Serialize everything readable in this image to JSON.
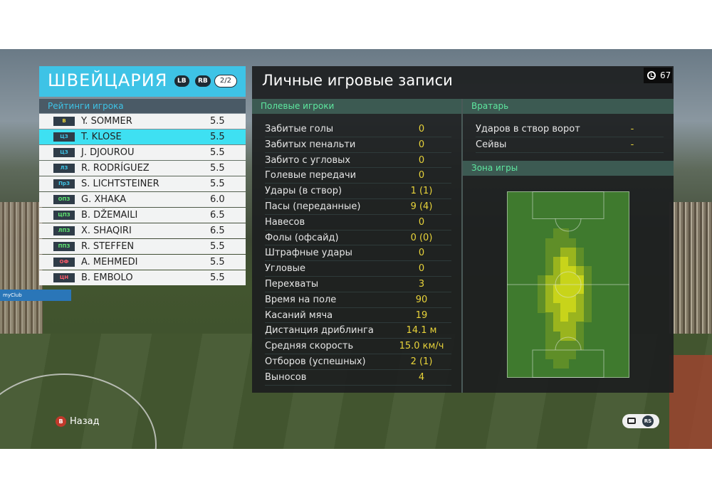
{
  "team": {
    "name": "ШВЕЙЦАРИЯ",
    "btn_lb": "LB",
    "btn_rb": "RB",
    "page": "2/2"
  },
  "ratings_title": "Рейтинги игрока",
  "players": [
    {
      "pos": "В",
      "pos_color": "#e8d33a",
      "name": "Y. SOMMER",
      "rating": "5.5"
    },
    {
      "pos": "ЦЗ",
      "pos_color": "#3ec3e6",
      "name": "T. KLOSE",
      "rating": "5.5",
      "selected": true
    },
    {
      "pos": "ЦЗ",
      "pos_color": "#3ec3e6",
      "name": "J. DJOUROU",
      "rating": "5.5"
    },
    {
      "pos": "ЛЗ",
      "pos_color": "#3ec3e6",
      "name": "R. RODRÍGUEZ",
      "rating": "5.5"
    },
    {
      "pos": "ПрЗ",
      "pos_color": "#3ec3e6",
      "name": "S. LICHTSTEINER",
      "rating": "5.5"
    },
    {
      "pos": "ОПЗ",
      "pos_color": "#5ee870",
      "name": "G. XHAKA",
      "rating": "6.0"
    },
    {
      "pos": "ЦПЗ",
      "pos_color": "#5ee870",
      "name": "B. DŽEMAILI",
      "rating": "6.5"
    },
    {
      "pos": "ЛПЗ",
      "pos_color": "#5ee870",
      "name": "X. SHAQIRI",
      "rating": "6.5"
    },
    {
      "pos": "ППЗ",
      "pos_color": "#5ee870",
      "name": "R. STEFFEN",
      "rating": "5.5"
    },
    {
      "pos": "ОФ",
      "pos_color": "#ff5a6a",
      "name": "A. MEHMEDI",
      "rating": "5.5"
    },
    {
      "pos": "ЦН",
      "pos_color": "#ff5a6a",
      "name": "B. EMBOLO",
      "rating": "5.5"
    }
  ],
  "main_title": "Личные игровые записи",
  "timer": "67",
  "field_head": "Полевые игроки",
  "gk_head": "Вратарь",
  "zone_head": "Зона игры",
  "field_stats": [
    {
      "label": "Забитые голы",
      "value": "0"
    },
    {
      "label": "Забитых пенальти",
      "value": "0"
    },
    {
      "label": "Забито с угловых",
      "value": "0"
    },
    {
      "label": "Голевые передачи",
      "value": "0"
    },
    {
      "label": "Удары (в створ)",
      "value": "1 (1)"
    },
    {
      "label": "Пасы (переданные)",
      "value": "9 (4)"
    },
    {
      "label": "Навесов",
      "value": "0"
    },
    {
      "label": "Фолы (офсайд)",
      "value": "0 (0)"
    },
    {
      "label": "Штрафные удары",
      "value": "0"
    },
    {
      "label": "Угловые",
      "value": "0"
    },
    {
      "label": "Перехваты",
      "value": "3"
    },
    {
      "label": "Время на поле",
      "value": "90"
    },
    {
      "label": "Касаний мяча",
      "value": "19"
    },
    {
      "label": "Дистанция дриблинга",
      "value": "14.1 м"
    },
    {
      "label": "Средняя скорость",
      "value": "15.0 км/ч"
    },
    {
      "label": "Отборов (успешных)",
      "value": "2 (1)"
    },
    {
      "label": "Выносов",
      "value": "4"
    }
  ],
  "gk_stats": [
    {
      "label": "Ударов в створ ворот",
      "value": "-"
    },
    {
      "label": "Сейвы",
      "value": "-"
    }
  ],
  "heatmap": {
    "cols": 16,
    "rows": 20,
    "colors": {
      "low": "#3f7a2e",
      "mid": "#5f8e28",
      "high": "#9ab41e",
      "peak": "#c8d41a"
    },
    "grid": [
      "0000000000000000",
      "0000000000000000",
      "0000000000000000",
      "0000000000000000",
      "0000001100000000",
      "0000011110000000",
      "0000011221000000",
      "0000012321000000",
      "0000012332100000",
      "0000122333100000",
      "0000123333100000",
      "0000123332100000",
      "0000122332100000",
      "0000012322100000",
      "0000012221000000",
      "0000011221000000",
      "0000011111000000",
      "0000011110000000",
      "0000001100000000",
      "0000000000000000"
    ]
  },
  "back_label": "Назад",
  "back_button_glyph": "B",
  "rs_glyph": "RS",
  "board_text": "myClub"
}
